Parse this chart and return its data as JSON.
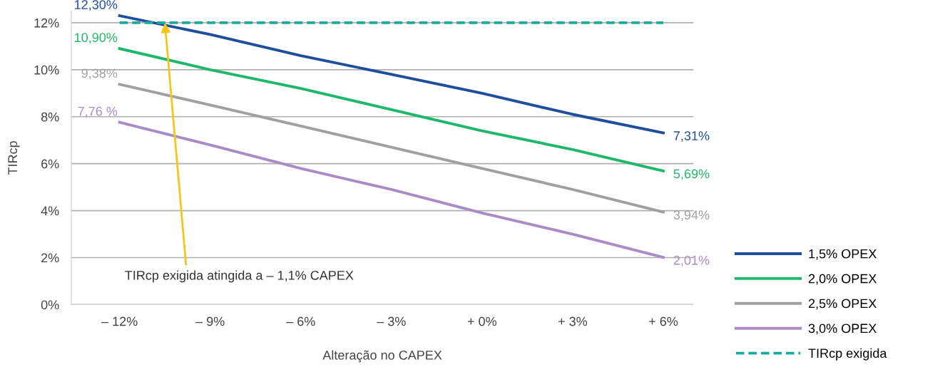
{
  "chart_data": {
    "type": "line",
    "xlabel": "Alteração no CAPEX",
    "ylabel": "TIRcp",
    "x": [
      -12,
      -9,
      -6,
      -3,
      0,
      3,
      6
    ],
    "xlim": [
      -13.6,
      7.0
    ],
    "ylim": [
      0,
      12.5
    ],
    "xticks": [
      {
        "value": -12,
        "label": "– 12%"
      },
      {
        "value": -9,
        "label": "– 9%"
      },
      {
        "value": -6,
        "label": "– 6%"
      },
      {
        "value": -3,
        "label": "– 3%"
      },
      {
        "value": 0,
        "label": "+ 0%"
      },
      {
        "value": 3,
        "label": "+ 3%"
      },
      {
        "value": 6,
        "label": "+ 6%"
      }
    ],
    "yticks": [
      {
        "value": 0,
        "label": "0%"
      },
      {
        "value": 2,
        "label": "2%"
      },
      {
        "value": 4,
        "label": "4%"
      },
      {
        "value": 6,
        "label": "6%"
      },
      {
        "value": 8,
        "label": "8%"
      },
      {
        "value": 10,
        "label": "10%"
      },
      {
        "value": 12,
        "label": "12%"
      }
    ],
    "grid": "y",
    "legend": "right",
    "marker": "none",
    "series": [
      {
        "name": "1,5% OPEX",
        "color": "#1f4e9c",
        "values": [
          12.3,
          11.5,
          10.6,
          9.8,
          9.0,
          8.1,
          7.31
        ],
        "value_labels": [
          "12,30%",
          null,
          null,
          null,
          null,
          null,
          "7,31%"
        ]
      },
      {
        "name": "2,0% OPEX",
        "color": "#1db86a",
        "values": [
          10.9,
          10.0,
          9.2,
          8.3,
          7.4,
          6.6,
          5.69
        ],
        "value_labels": [
          "10,90%",
          null,
          null,
          null,
          null,
          null,
          "5,69%"
        ]
      },
      {
        "name": "2,5% OPEX",
        "color": "#a0a0a0",
        "values": [
          9.38,
          8.5,
          7.6,
          6.7,
          5.8,
          4.9,
          3.94
        ],
        "value_labels": [
          "9,38%",
          null,
          null,
          null,
          null,
          null,
          "3,94%"
        ]
      },
      {
        "name": "3,0% OPEX",
        "color": "#a98bc6",
        "values": [
          7.76,
          6.8,
          5.8,
          4.9,
          3.9,
          3.0,
          2.01
        ],
        "value_labels": [
          "7,76 %",
          null,
          null,
          null,
          null,
          null,
          "2,01%"
        ]
      },
      {
        "name": "TIRcp exigida",
        "color": "#1aab9b",
        "line_style": "dashed",
        "values": [
          12,
          12,
          12,
          12,
          12,
          12,
          12
        ]
      }
    ],
    "annotations": [
      {
        "text": "TIRcp exigida atingida a – 1,1% CAPEX",
        "x": -10.5,
        "y": 12
      }
    ]
  }
}
